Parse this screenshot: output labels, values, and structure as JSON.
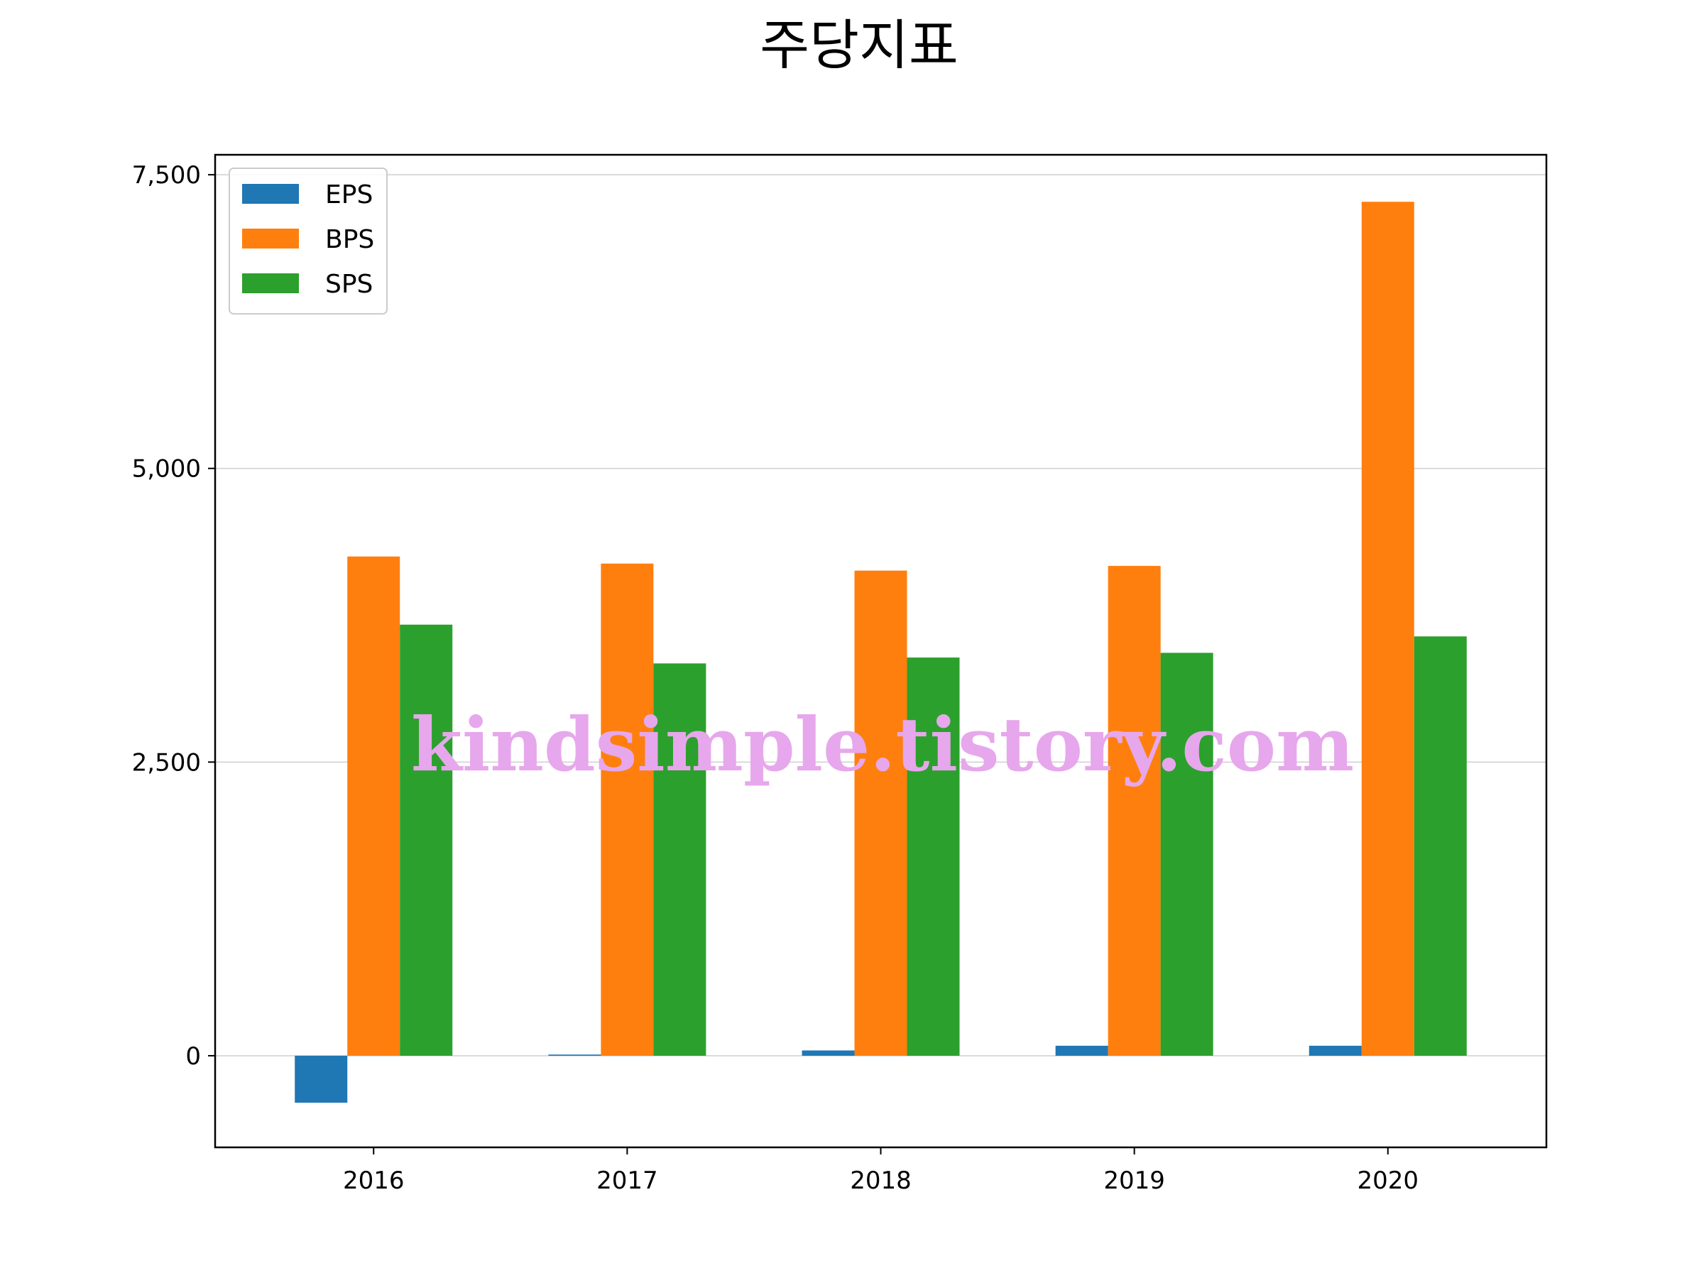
{
  "chart_data": {
    "type": "bar",
    "title": "주당지표",
    "categories": [
      "2016",
      "2017",
      "2018",
      "2019",
      "2020"
    ],
    "series": [
      {
        "name": "EPS",
        "color": "#1f77b4",
        "values": [
          -400,
          10,
          45,
          85,
          85
        ]
      },
      {
        "name": "BPS",
        "color": "#ff7f0e",
        "values": [
          4250,
          4190,
          4130,
          4170,
          7270
        ]
      },
      {
        "name": "SPS",
        "color": "#2ca02c",
        "values": [
          3670,
          3340,
          3390,
          3430,
          3570
        ]
      }
    ],
    "xlabel": "",
    "ylabel": "",
    "ylim": [
      -780,
      7670
    ],
    "yticks": [
      0,
      2500,
      5000,
      7500
    ],
    "ytick_labels": [
      "0",
      "2,500",
      "5,000",
      "7,500"
    ],
    "grid": "y",
    "legend": "upper-left"
  },
  "watermark": "kindsimple.tistory.com"
}
